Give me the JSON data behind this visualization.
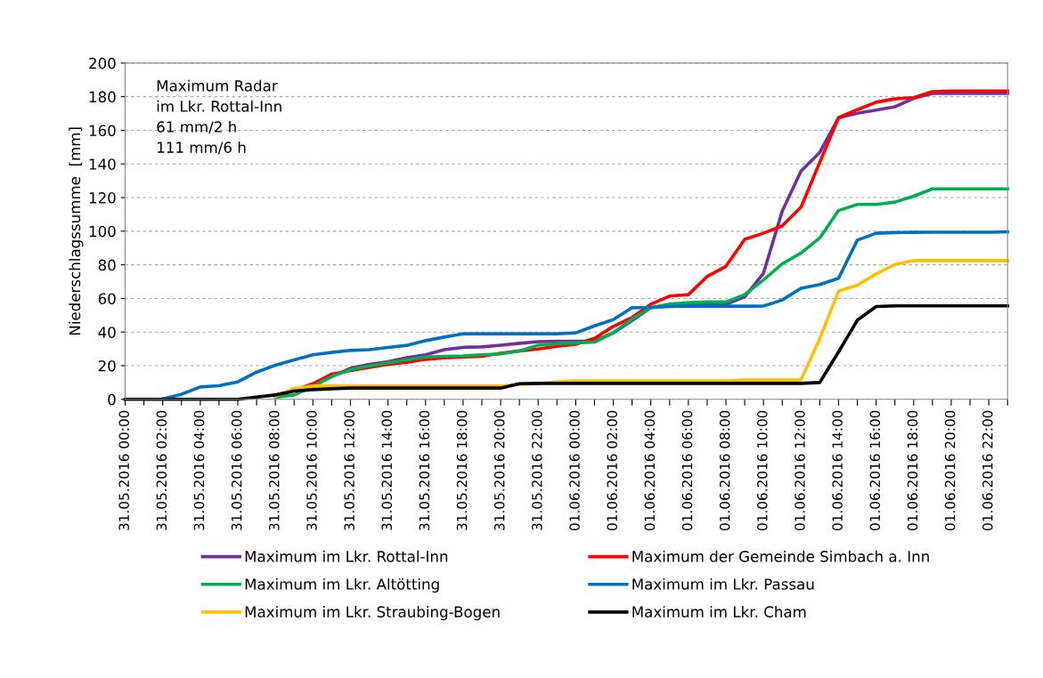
{
  "chart_data": {
    "type": "line",
    "ylabel": "Niederschlagssumme  [mm]",
    "annotations": [
      "Maximum Radar\nim Lkr. Rottal-Inn\n61 mm/2 h\n111 mm/6 h"
    ],
    "categories": [
      "31.05.2016 00:00",
      null,
      "31.05.2016 02:00",
      null,
      "31.05.2016 04:00",
      null,
      "31.05.2016 06:00",
      null,
      "31.05.2016 08:00",
      null,
      "31.05.2016 10:00",
      null,
      "31.05.2016 12:00",
      null,
      "31.05.2016 14:00",
      null,
      "31.05.2016 16:00",
      null,
      "31.05.2016 18:00",
      null,
      "31.05.2016 20:00",
      null,
      "31.05.2016 22:00",
      null,
      "01.06.2016 00:00",
      null,
      "01.06.2016 02:00",
      null,
      "01.06.2016 04:00",
      null,
      "01.06.2016 06:00",
      null,
      "01.06.2016 08:00",
      null,
      "01.06.2016 10:00",
      null,
      "01.06.2016 12:00",
      null,
      "01.06.2016 14:00",
      null,
      "01.06.2016 16:00",
      null,
      "01.06.2016 18:00",
      null,
      "01.06.2016 20:00",
      null,
      "01.06.2016 22:00",
      null
    ],
    "series": [
      {
        "name": "Maximum im Lkr. Rottal-Inn",
        "color": "#7030a0",
        "values": [
          null,
          null,
          null,
          null,
          null,
          null,
          null,
          null,
          null,
          null,
          8,
          13.6,
          18.5,
          20.8,
          22.4,
          24.7,
          26.5,
          29.5,
          30.9,
          31.2,
          32.2,
          33.3,
          34.3,
          34.5,
          34.5,
          34.7,
          39.5,
          46.9,
          54.5,
          55.8,
          56.1,
          56.1,
          56.5,
          61,
          75,
          112,
          135.8,
          146.9,
          167.5,
          170.2,
          172,
          174,
          179,
          182,
          182,
          182,
          182,
          182
        ]
      },
      {
        "name": "Maximum der Gemeinde Simbach a. Inn",
        "color": "#ff0000",
        "values": [
          null,
          null,
          null,
          null,
          null,
          null,
          null,
          null,
          2.6,
          5.3,
          9.3,
          15,
          17.1,
          19,
          20.8,
          22,
          23.8,
          24.7,
          25.2,
          25.6,
          27.4,
          28.8,
          29.9,
          31.5,
          32.7,
          36.3,
          43.4,
          48.7,
          56.6,
          61.4,
          62.3,
          73.1,
          79.1,
          95.2,
          98.8,
          103.2,
          114.3,
          141,
          167.5,
          172.3,
          176.7,
          178.7,
          179.4,
          183,
          183.4,
          183.4,
          183.4,
          183.4
        ]
      },
      {
        "name": "Maximum im Lkr. Altötting",
        "color": "#00b050",
        "values": [
          null,
          null,
          null,
          null,
          null,
          null,
          null,
          null,
          1.2,
          2.6,
          7.6,
          13.6,
          17.6,
          19.9,
          21.7,
          23.5,
          25.2,
          25.6,
          25.8,
          26.5,
          27,
          28.7,
          32.2,
          33.1,
          33.6,
          34,
          39.5,
          47.8,
          54.5,
          56.6,
          57.5,
          57.9,
          57.9,
          62.3,
          71,
          80.6,
          87,
          96,
          112.3,
          115.9,
          115.9,
          117.3,
          120.8,
          125.2,
          125.2,
          125.2,
          125.2,
          125.2
        ]
      },
      {
        "name": "Maximum im Lkr. Passau",
        "color": "#0070c0",
        "values": [
          null,
          null,
          0.3,
          3,
          7.4,
          8.1,
          10.4,
          16.2,
          20.3,
          23.5,
          26.5,
          27.9,
          29.1,
          29.5,
          30.9,
          32.1,
          34.9,
          37,
          39,
          39,
          39,
          39,
          39,
          39,
          39.5,
          43.7,
          47.4,
          54.5,
          54.7,
          55.2,
          55.4,
          55.4,
          55.4,
          55.4,
          55.5,
          59.1,
          66.1,
          68.3,
          72,
          94.7,
          98.8,
          99.2,
          99.3,
          99.4,
          99.4,
          99.4,
          99.4,
          99.6
        ]
      },
      {
        "name": "Maximum im Lkr. Straubing-Bogen",
        "color": "#ffc000",
        "values": [
          null,
          null,
          null,
          null,
          null,
          null,
          null,
          null,
          1.8,
          6.5,
          7.9,
          7.9,
          7.9,
          7.9,
          7.9,
          7.9,
          7.9,
          7.9,
          7.9,
          7.9,
          7.9,
          8.8,
          9.3,
          10.5,
          11,
          11,
          11,
          11,
          11,
          11,
          11,
          11,
          11,
          11.5,
          11.5,
          11.5,
          11.5,
          36.2,
          64.4,
          67.9,
          74.6,
          80.2,
          82.5,
          82.5,
          82.5,
          82.5,
          82.5,
          82.5
        ]
      },
      {
        "name": "Maximum im Lkr. Cham",
        "color": "#000000",
        "values": [
          0,
          0,
          0,
          0,
          0,
          0,
          0,
          1.4,
          2.6,
          4.9,
          5.8,
          6.3,
          6.7,
          6.7,
          6.7,
          6.7,
          6.7,
          6.7,
          6.7,
          6.7,
          6.7,
          9.3,
          9.5,
          9.5,
          9.5,
          9.5,
          9.5,
          9.5,
          9.5,
          9.5,
          9.5,
          9.5,
          9.5,
          9.5,
          9.5,
          9.5,
          9.5,
          10,
          28.2,
          47.1,
          55.2,
          55.6,
          55.6,
          55.6,
          55.6,
          55.6,
          55.6,
          55.6
        ]
      }
    ],
    "ylim": [
      0,
      200
    ],
    "yticks": [
      0,
      20,
      40,
      60,
      80,
      100,
      120,
      140,
      160,
      180,
      200
    ],
    "grid": "y",
    "legend": "bottom",
    "marker": "none",
    "line_style": "solid"
  }
}
